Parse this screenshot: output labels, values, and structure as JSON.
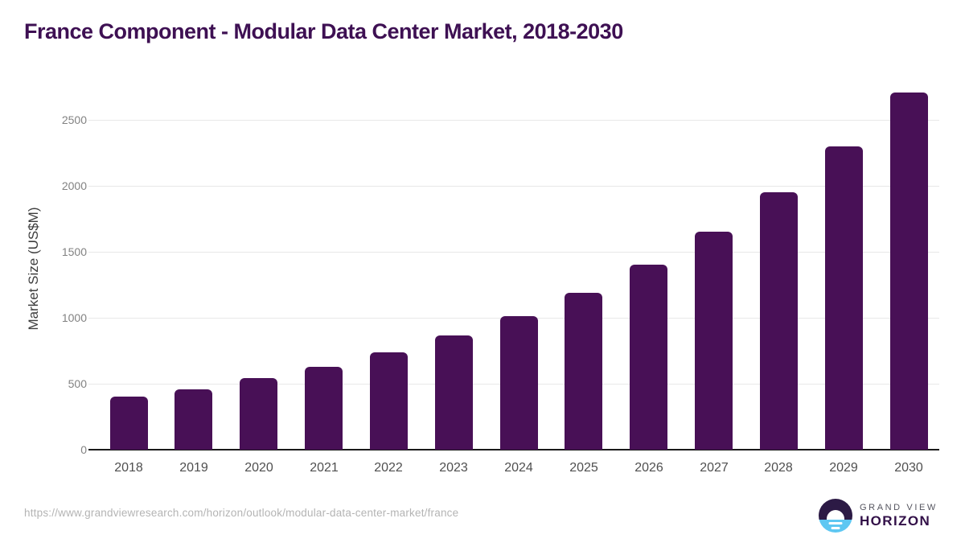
{
  "page": {
    "title": "France Component - Modular Data Center Market, 2018-2030",
    "source_url": "https://www.grandviewresearch.com/horizon/outlook/modular-data-center-market/france"
  },
  "logo": {
    "brand_top": "GRAND VIEW",
    "brand_bottom": "HORIZON"
  },
  "chart_data": {
    "type": "bar",
    "title": "France Component - Modular Data Center Market, 2018-2030",
    "categories": [
      "2018",
      "2019",
      "2020",
      "2021",
      "2022",
      "2023",
      "2024",
      "2025",
      "2026",
      "2027",
      "2028",
      "2029",
      "2030"
    ],
    "values": [
      400,
      460,
      540,
      630,
      740,
      865,
      1015,
      1190,
      1400,
      1650,
      1950,
      2300,
      2710
    ],
    "xlabel": "",
    "ylabel": "Market Size (US$M)",
    "ylim": [
      0,
      2800
    ],
    "yticks": [
      0,
      500,
      1000,
      1500,
      2000,
      2500
    ],
    "grid": "horizontal-only",
    "legend": "none",
    "bar_color": "#481056"
  },
  "colors": {
    "title": "#3e1053",
    "bar": "#481056",
    "axis_line": "#1a1a1a",
    "gridline": "#e8e8e8",
    "x_tick_text": "#4f4f4f",
    "y_tick_text": "#828282",
    "y_axis_title_text": "#3d3d3d",
    "source_url_text": "#b4b4b4",
    "logo_purple": "#2c1a45",
    "logo_blue": "#5ec7f2",
    "brand_top_text": "#54545e",
    "brand_bottom_text": "#321048"
  }
}
